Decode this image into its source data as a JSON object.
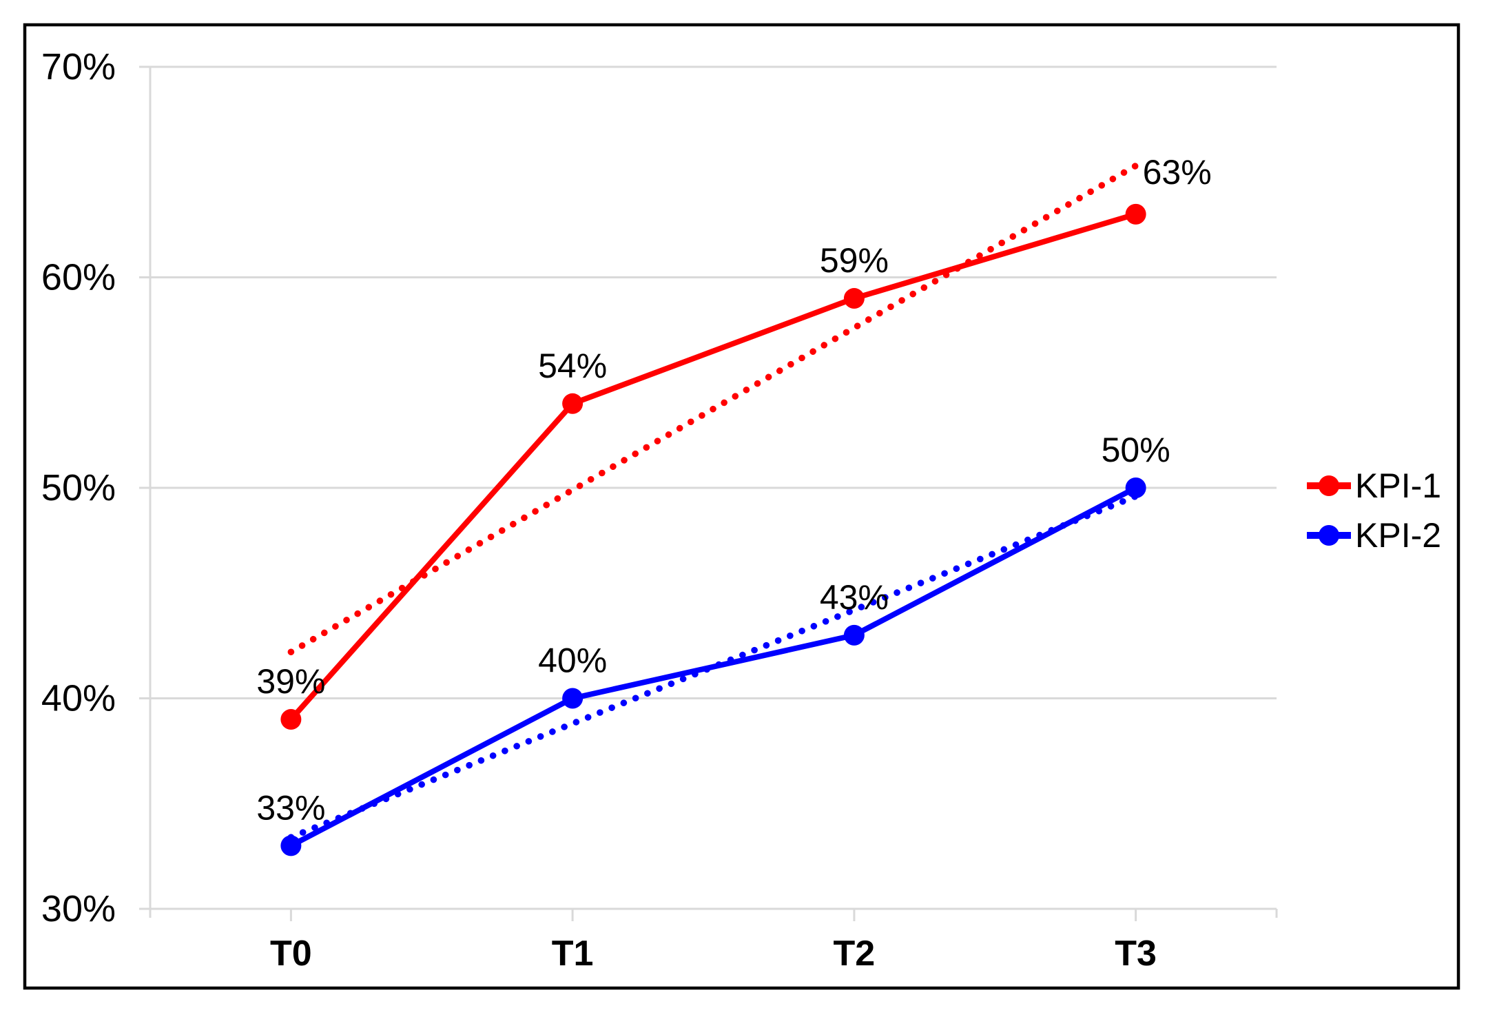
{
  "chart_data": {
    "type": "line",
    "title": "",
    "categories": [
      "T0",
      "T1",
      "T2",
      "T3"
    ],
    "series": [
      {
        "name": "KPI-1",
        "color": "#ff0000",
        "values": [
          39,
          54,
          59,
          63
        ],
        "data_labels": [
          "39%",
          "54%",
          "59%",
          "63%"
        ],
        "trendline": "linear-dotted"
      },
      {
        "name": "KPI-2",
        "color": "#0000ff",
        "values": [
          33,
          40,
          43,
          50
        ],
        "data_labels": [
          "33%",
          "40%",
          "43%",
          "50%"
        ],
        "trendline": "linear-dotted"
      }
    ],
    "y_axis": {
      "tick_labels": [
        "30%",
        "40%",
        "50%",
        "60%",
        "70%"
      ],
      "tick_values": [
        30,
        40,
        50,
        60,
        70
      ],
      "min": 30,
      "max": 70
    },
    "grid": true,
    "legend": {
      "position": "right",
      "items": [
        "KPI-1",
        "KPI-2"
      ]
    },
    "colors": {
      "kpi1": "#ff0000",
      "kpi2": "#0000ff",
      "gridline": "#d9d9d9",
      "axis": "#d9d9d9",
      "text": "#000000",
      "background": "#ffffff",
      "border": "#000000"
    }
  }
}
